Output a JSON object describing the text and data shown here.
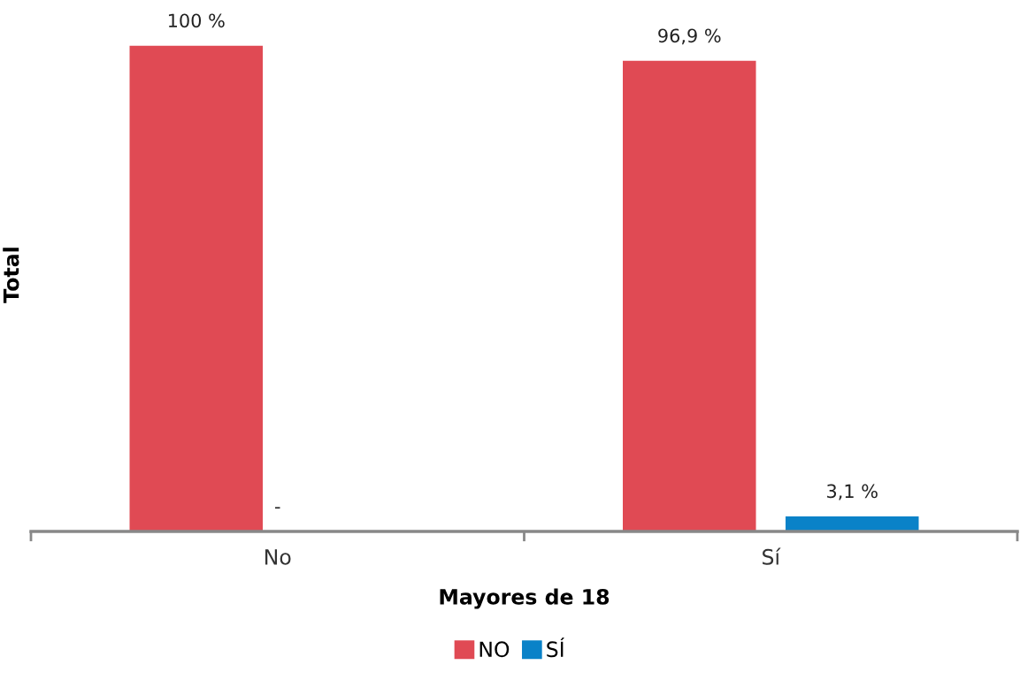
{
  "chart_data": {
    "type": "bar",
    "xlabel": "Mayores de 18",
    "ylabel": "Total",
    "categories": [
      "No",
      "Sí"
    ],
    "series": [
      {
        "name": "NO",
        "color": "#e04a54",
        "values": [
          100,
          96.9
        ],
        "value_labels": [
          "100 %",
          "96,9 %"
        ]
      },
      {
        "name": "SÍ",
        "color": "#0a82c8",
        "values": [
          0,
          3.1
        ],
        "value_labels": [
          null,
          "3,1 %"
        ]
      }
    ],
    "annotations": [
      {
        "text": "-",
        "x": "No",
        "y": 0
      }
    ],
    "legend": "bottom",
    "grid": false
  }
}
